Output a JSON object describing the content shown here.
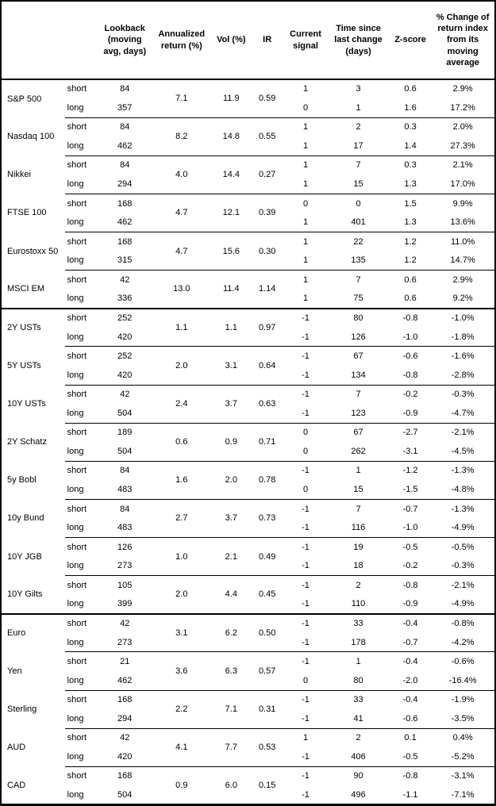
{
  "table": {
    "headers": [
      "",
      "",
      "Lookback (moving avg, days)",
      "Annualized return (%)",
      "Vol (%)",
      "IR",
      "Current signal",
      "Time since last change (days)",
      "Z-score",
      "% Change of return index from its moving average"
    ],
    "labels": {
      "short": "short",
      "long": "long"
    },
    "sections": [
      {
        "groups": [
          {
            "name": "S&P 500",
            "ann_return": "7.1",
            "vol": "11.9",
            "ir": "0.59",
            "short": {
              "lookback": "84",
              "signal": "1",
              "time": "3",
              "z": "0.6",
              "pct": "2.9%"
            },
            "long": {
              "lookback": "357",
              "signal": "0",
              "time": "1",
              "z": "1.6",
              "pct": "17.2%"
            }
          },
          {
            "name": "Nasdaq 100",
            "ann_return": "8.2",
            "vol": "14.8",
            "ir": "0.55",
            "short": {
              "lookback": "84",
              "signal": "1",
              "time": "2",
              "z": "0.3",
              "pct": "2.0%"
            },
            "long": {
              "lookback": "462",
              "signal": "1",
              "time": "17",
              "z": "1.4",
              "pct": "27.3%"
            }
          },
          {
            "name": "Nikkei",
            "ann_return": "4.0",
            "vol": "14.4",
            "ir": "0.27",
            "short": {
              "lookback": "84",
              "signal": "1",
              "time": "7",
              "z": "0.3",
              "pct": "2.1%"
            },
            "long": {
              "lookback": "294",
              "signal": "1",
              "time": "15",
              "z": "1.3",
              "pct": "17.0%"
            }
          },
          {
            "name": "FTSE 100",
            "ann_return": "4.7",
            "vol": "12.1",
            "ir": "0.39",
            "short": {
              "lookback": "168",
              "signal": "0",
              "time": "0",
              "z": "1.5",
              "pct": "9.9%"
            },
            "long": {
              "lookback": "462",
              "signal": "1",
              "time": "401",
              "z": "1.3",
              "pct": "13.6%"
            }
          },
          {
            "name": "Eurostoxx 50",
            "ann_return": "4.7",
            "vol": "15.6",
            "ir": "0.30",
            "short": {
              "lookback": "168",
              "signal": "1",
              "time": "22",
              "z": "1.2",
              "pct": "11.0%"
            },
            "long": {
              "lookback": "315",
              "signal": "1",
              "time": "135",
              "z": "1.2",
              "pct": "14.7%"
            }
          },
          {
            "name": "MSCI EM",
            "ann_return": "13.0",
            "vol": "11.4",
            "ir": "1.14",
            "short": {
              "lookback": "42",
              "signal": "1",
              "time": "7",
              "z": "0.6",
              "pct": "2.9%"
            },
            "long": {
              "lookback": "336",
              "signal": "1",
              "time": "75",
              "z": "0.6",
              "pct": "9.2%"
            }
          }
        ]
      },
      {
        "groups": [
          {
            "name": "2Y USTs",
            "ann_return": "1.1",
            "vol": "1.1",
            "ir": "0.97",
            "short": {
              "lookback": "252",
              "signal": "-1",
              "time": "80",
              "z": "-0.8",
              "pct": "-1.0%"
            },
            "long": {
              "lookback": "420",
              "signal": "-1",
              "time": "126",
              "z": "-1.0",
              "pct": "-1.8%"
            }
          },
          {
            "name": "5Y USTs",
            "ann_return": "2.0",
            "vol": "3.1",
            "ir": "0.64",
            "short": {
              "lookback": "252",
              "signal": "-1",
              "time": "67",
              "z": "-0.6",
              "pct": "-1.6%"
            },
            "long": {
              "lookback": "420",
              "signal": "-1",
              "time": "134",
              "z": "-0.8",
              "pct": "-2.8%"
            }
          },
          {
            "name": "10Y USTs",
            "ann_return": "2.4",
            "vol": "3.7",
            "ir": "0.63",
            "short": {
              "lookback": "42",
              "signal": "-1",
              "time": "7",
              "z": "-0.2",
              "pct": "-0.3%"
            },
            "long": {
              "lookback": "504",
              "signal": "-1",
              "time": "123",
              "z": "-0.9",
              "pct": "-4.7%"
            }
          },
          {
            "name": "2Y Schatz",
            "ann_return": "0.6",
            "vol": "0.9",
            "ir": "0.71",
            "short": {
              "lookback": "189",
              "signal": "0",
              "time": "67",
              "z": "-2.7",
              "pct": "-2.1%"
            },
            "long": {
              "lookback": "504",
              "signal": "0",
              "time": "262",
              "z": "-3.1",
              "pct": "-4.5%"
            }
          },
          {
            "name": "5y Bobl",
            "ann_return": "1.6",
            "vol": "2.0",
            "ir": "0.78",
            "short": {
              "lookback": "84",
              "signal": "-1",
              "time": "1",
              "z": "-1.2",
              "pct": "-1.3%"
            },
            "long": {
              "lookback": "483",
              "signal": "0",
              "time": "15",
              "z": "-1.5",
              "pct": "-4.8%"
            }
          },
          {
            "name": "10y Bund",
            "ann_return": "2.7",
            "vol": "3.7",
            "ir": "0.73",
            "short": {
              "lookback": "84",
              "signal": "-1",
              "time": "7",
              "z": "-0.7",
              "pct": "-1.3%"
            },
            "long": {
              "lookback": "483",
              "signal": "-1",
              "time": "116",
              "z": "-1.0",
              "pct": "-4.9%"
            }
          },
          {
            "name": "10Y JGB",
            "ann_return": "1.0",
            "vol": "2.1",
            "ir": "0.49",
            "short": {
              "lookback": "126",
              "signal": "-1",
              "time": "19",
              "z": "-0.5",
              "pct": "-0.5%"
            },
            "long": {
              "lookback": "273",
              "signal": "-1",
              "time": "18",
              "z": "-0.2",
              "pct": "-0.3%"
            }
          },
          {
            "name": "10Y Gilts",
            "ann_return": "2.0",
            "vol": "4.4",
            "ir": "0.45",
            "short": {
              "lookback": "105",
              "signal": "-1",
              "time": "2",
              "z": "-0.8",
              "pct": "-2.1%"
            },
            "long": {
              "lookback": "399",
              "signal": "-1",
              "time": "110",
              "z": "-0.9",
              "pct": "-4.9%"
            }
          }
        ]
      },
      {
        "groups": [
          {
            "name": "Euro",
            "ann_return": "3.1",
            "vol": "6.2",
            "ir": "0.50",
            "short": {
              "lookback": "42",
              "signal": "-1",
              "time": "33",
              "z": "-0.4",
              "pct": "-0.8%"
            },
            "long": {
              "lookback": "273",
              "signal": "-1",
              "time": "178",
              "z": "-0.7",
              "pct": "-4.2%"
            }
          },
          {
            "name": "Yen",
            "ann_return": "3.6",
            "vol": "6.3",
            "ir": "0.57",
            "short": {
              "lookback": "21",
              "signal": "-1",
              "time": "1",
              "z": "-0.4",
              "pct": "-0.6%"
            },
            "long": {
              "lookback": "462",
              "signal": "0",
              "time": "80",
              "z": "-2.0",
              "pct": "-16.4%"
            }
          },
          {
            "name": "Sterling",
            "ann_return": "2.2",
            "vol": "7.1",
            "ir": "0.31",
            "short": {
              "lookback": "168",
              "signal": "-1",
              "time": "33",
              "z": "-0.4",
              "pct": "-1.9%"
            },
            "long": {
              "lookback": "294",
              "signal": "-1",
              "time": "41",
              "z": "-0.6",
              "pct": "-3.5%"
            }
          },
          {
            "name": "AUD",
            "ann_return": "4.1",
            "vol": "7.7",
            "ir": "0.53",
            "short": {
              "lookback": "42",
              "signal": "1",
              "time": "2",
              "z": "0.1",
              "pct": "0.4%"
            },
            "long": {
              "lookback": "420",
              "signal": "-1",
              "time": "406",
              "z": "-0.5",
              "pct": "-5.2%"
            }
          },
          {
            "name": "CAD",
            "ann_return": "0.9",
            "vol": "6.0",
            "ir": "0.15",
            "short": {
              "lookback": "168",
              "signal": "-1",
              "time": "90",
              "z": "-0.8",
              "pct": "-3.1%"
            },
            "long": {
              "lookback": "504",
              "signal": "-1",
              "time": "496",
              "z": "-1.1",
              "pct": "-7.1%"
            }
          }
        ]
      }
    ]
  }
}
